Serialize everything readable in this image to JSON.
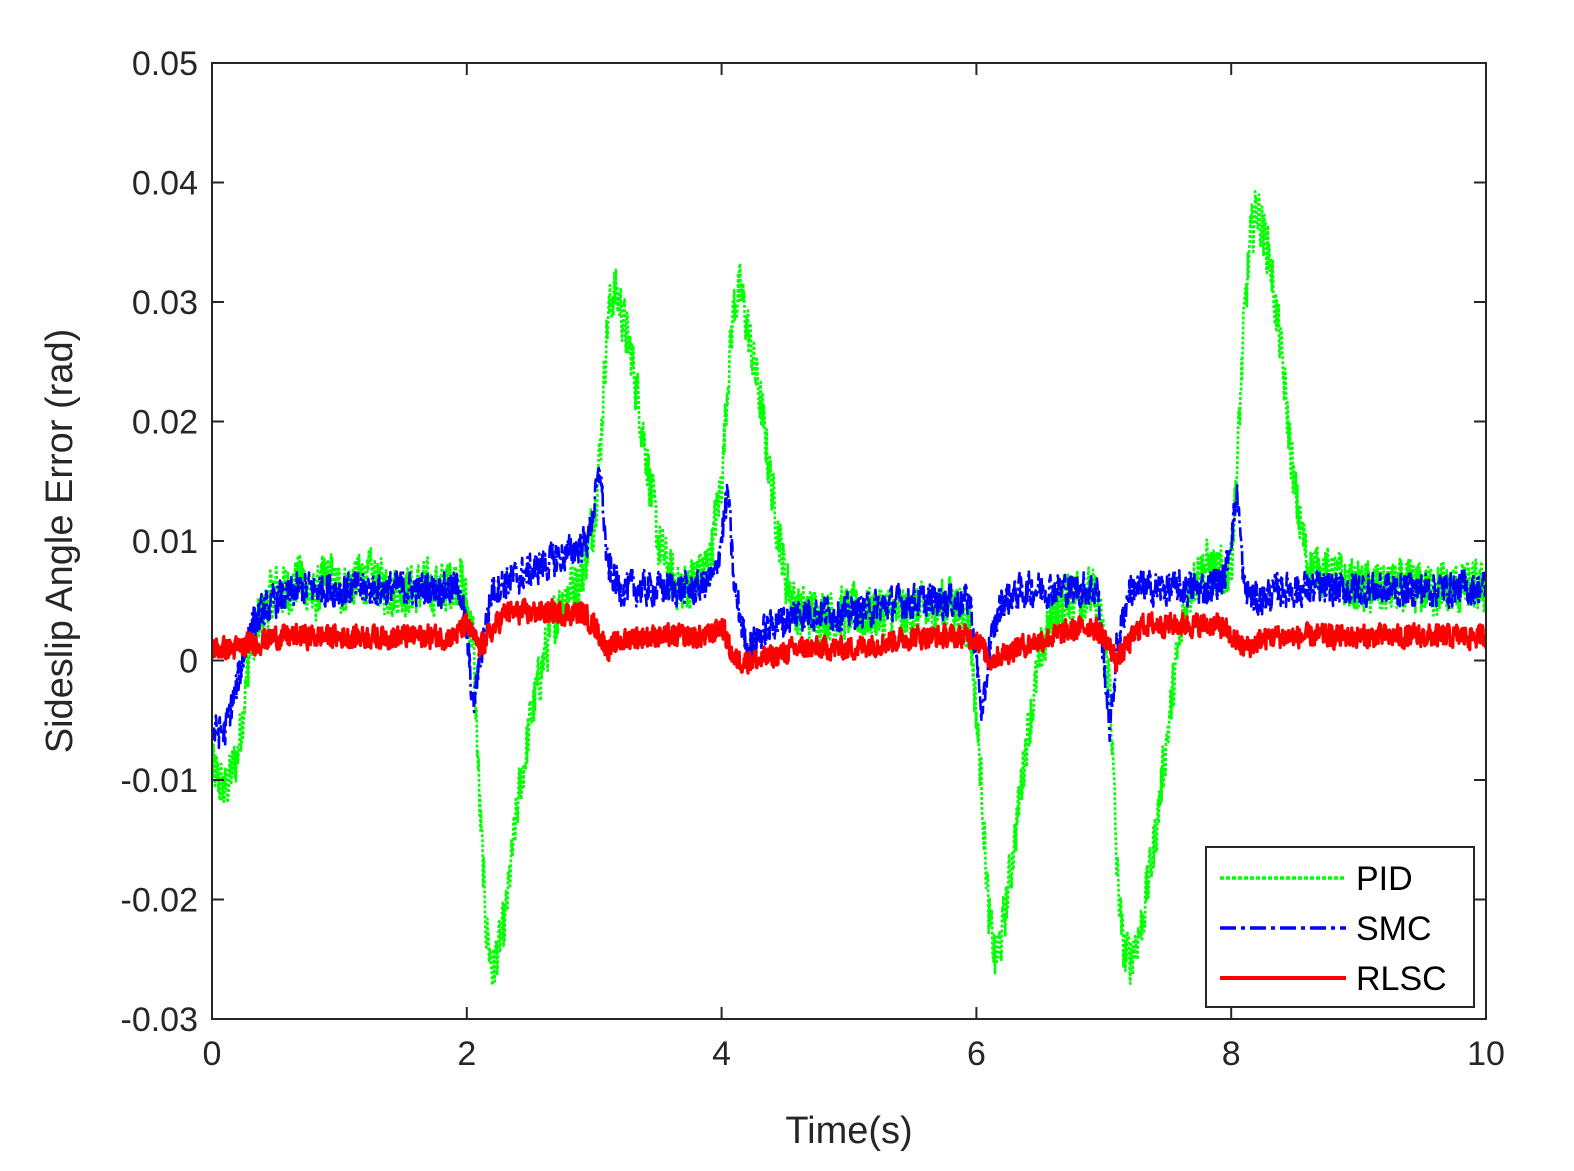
{
  "chart_data": {
    "type": "line",
    "title": "",
    "xlabel": "Time(s)",
    "ylabel": "Sideslip Angle Error (rad)",
    "xlim": [
      0,
      10
    ],
    "ylim": [
      -0.03,
      0.05
    ],
    "xticks": [
      0,
      2,
      4,
      6,
      8,
      10
    ],
    "xtick_labels": [
      "0",
      "2",
      "4",
      "6",
      "8",
      "10"
    ],
    "yticks": [
      -0.03,
      -0.02,
      -0.01,
      0,
      0.01,
      0.02,
      0.03,
      0.04,
      0.05
    ],
    "ytick_labels": [
      "-0.03",
      "-0.02",
      "-0.01",
      "0",
      "0.01",
      "0.02",
      "0.03",
      "0.04",
      "0.05"
    ],
    "grid": false,
    "legend": "bottom-right",
    "series": [
      {
        "name": "PID",
        "color": "#00ff00",
        "style": "dotted",
        "x": [
          0,
          0.1,
          0.2,
          0.3,
          0.4,
          0.5,
          0.6,
          0.7,
          0.8,
          0.9,
          1.0,
          1.2,
          1.4,
          1.6,
          1.8,
          1.95,
          2.05,
          2.1,
          2.15,
          2.2,
          2.3,
          2.4,
          2.5,
          2.6,
          2.7,
          2.8,
          2.9,
          3.0,
          3.05,
          3.1,
          3.15,
          3.2,
          3.3,
          3.4,
          3.5,
          3.6,
          3.7,
          3.8,
          3.9,
          4.0,
          4.05,
          4.1,
          4.15,
          4.2,
          4.3,
          4.4,
          4.5,
          4.6,
          4.8,
          5.0,
          5.2,
          5.4,
          5.6,
          5.8,
          5.95,
          6.05,
          6.1,
          6.15,
          6.2,
          6.3,
          6.4,
          6.5,
          6.6,
          6.8,
          6.95,
          7.05,
          7.1,
          7.15,
          7.2,
          7.3,
          7.4,
          7.5,
          7.6,
          7.7,
          7.8,
          7.9,
          8.0,
          8.05,
          8.1,
          8.15,
          8.2,
          8.3,
          8.4,
          8.5,
          8.6,
          8.8,
          9.0,
          9.2,
          9.4,
          9.6,
          9.8,
          10.0
        ],
        "y": [
          -0.009,
          -0.011,
          -0.008,
          0.001,
          0.004,
          0.006,
          0.006,
          0.007,
          0.005,
          0.007,
          0.006,
          0.007,
          0.006,
          0.006,
          0.006,
          0.007,
          0.002,
          -0.012,
          -0.022,
          -0.026,
          -0.022,
          -0.012,
          -0.005,
          0.0,
          0.004,
          0.006,
          0.007,
          0.012,
          0.018,
          0.028,
          0.031,
          0.03,
          0.025,
          0.018,
          0.01,
          0.007,
          0.006,
          0.007,
          0.008,
          0.015,
          0.024,
          0.03,
          0.031,
          0.028,
          0.022,
          0.014,
          0.007,
          0.004,
          0.004,
          0.004,
          0.004,
          0.004,
          0.004,
          0.005,
          0.003,
          -0.012,
          -0.022,
          -0.025,
          -0.023,
          -0.015,
          -0.006,
          0.0,
          0.004,
          0.006,
          0.005,
          -0.002,
          -0.017,
          -0.024,
          -0.025,
          -0.022,
          -0.015,
          -0.006,
          0.002,
          0.007,
          0.008,
          0.007,
          0.008,
          0.017,
          0.028,
          0.035,
          0.038,
          0.034,
          0.025,
          0.014,
          0.008,
          0.007,
          0.006,
          0.006,
          0.006,
          0.006,
          0.006,
          0.006
        ],
        "noise": 0.0028
      },
      {
        "name": "SMC",
        "color": "#0000ff",
        "style": "dash-dot",
        "x": [
          0,
          0.1,
          0.2,
          0.3,
          0.5,
          0.7,
          1.0,
          1.5,
          1.95,
          2.0,
          2.05,
          2.1,
          2.2,
          2.4,
          2.6,
          2.8,
          2.95,
          3.05,
          3.1,
          3.2,
          3.4,
          3.6,
          3.8,
          3.95,
          4.05,
          4.1,
          4.2,
          4.4,
          4.6,
          5.0,
          5.5,
          5.95,
          6.05,
          6.1,
          6.2,
          6.4,
          6.6,
          6.8,
          6.95,
          7.05,
          7.1,
          7.2,
          7.4,
          7.6,
          7.8,
          7.95,
          8.05,
          8.1,
          8.2,
          8.4,
          8.6,
          9.0,
          9.5,
          10.0
        ],
        "y": [
          -0.006,
          -0.006,
          -0.002,
          0.003,
          0.005,
          0.006,
          0.006,
          0.006,
          0.006,
          0.002,
          -0.004,
          0.0,
          0.006,
          0.007,
          0.008,
          0.009,
          0.01,
          0.016,
          0.008,
          0.006,
          0.006,
          0.006,
          0.006,
          0.007,
          0.014,
          0.006,
          0.001,
          0.003,
          0.004,
          0.004,
          0.005,
          0.005,
          -0.005,
          0.001,
          0.005,
          0.006,
          0.006,
          0.006,
          0.006,
          -0.006,
          0.001,
          0.006,
          0.006,
          0.006,
          0.006,
          0.007,
          0.014,
          0.006,
          0.005,
          0.006,
          0.006,
          0.006,
          0.006,
          0.006
        ],
        "noise": 0.0018
      },
      {
        "name": "RLSC",
        "color": "#ff0000",
        "style": "solid",
        "x": [
          0,
          0.2,
          0.5,
          1.0,
          1.5,
          1.9,
          2.0,
          2.1,
          2.3,
          2.6,
          2.9,
          3.0,
          3.1,
          3.3,
          3.6,
          3.9,
          4.0,
          4.1,
          4.3,
          4.6,
          5.0,
          5.5,
          5.9,
          6.0,
          6.1,
          6.3,
          6.6,
          6.9,
          7.0,
          7.1,
          7.3,
          7.6,
          7.9,
          8.0,
          8.1,
          8.3,
          8.6,
          9.0,
          9.5,
          10.0
        ],
        "y": [
          0.001,
          0.001,
          0.002,
          0.002,
          0.002,
          0.002,
          0.003,
          0.001,
          0.004,
          0.004,
          0.004,
          0.003,
          0.001,
          0.002,
          0.002,
          0.002,
          0.003,
          0.0,
          0.0,
          0.001,
          0.001,
          0.002,
          0.002,
          0.002,
          0.0,
          0.001,
          0.002,
          0.003,
          0.002,
          0.0,
          0.003,
          0.003,
          0.003,
          0.002,
          0.001,
          0.002,
          0.002,
          0.002,
          0.002,
          0.002
        ],
        "noise": 0.0012
      }
    ]
  }
}
